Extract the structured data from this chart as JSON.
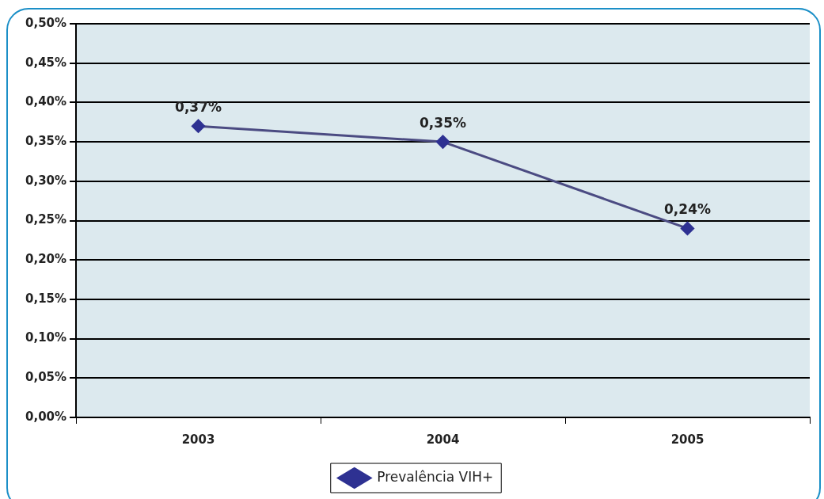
{
  "chart_data": {
    "type": "line",
    "categories": [
      "2003",
      "2004",
      "2005"
    ],
    "series": [
      {
        "name": "Prevalência VIH+",
        "color": "#4b4b82",
        "values": [
          0.37,
          0.35,
          0.24
        ],
        "value_labels": [
          "0,37%",
          "0,35%",
          "0,24%"
        ]
      }
    ],
    "ylim": [
      0,
      0.5
    ],
    "yticks": [
      {
        "value": 0,
        "label": "0,00%"
      },
      {
        "value": 0.05,
        "label": "0,05%"
      },
      {
        "value": 0.1,
        "label": "0,10%"
      },
      {
        "value": 0.15,
        "label": "0,15%"
      },
      {
        "value": 0.2,
        "label": "0,20%"
      },
      {
        "value": 0.25,
        "label": "0,25%"
      },
      {
        "value": 0.3,
        "label": "0,30%"
      },
      {
        "value": 0.35,
        "label": "0,35%"
      },
      {
        "value": 0.4,
        "label": "0,40%"
      },
      {
        "value": 0.45,
        "label": "0,45%"
      },
      {
        "value": 0.5,
        "label": "0,50%"
      }
    ],
    "grid": "y",
    "legend": "bottom",
    "marker": "diamond",
    "line_style": "solid"
  }
}
